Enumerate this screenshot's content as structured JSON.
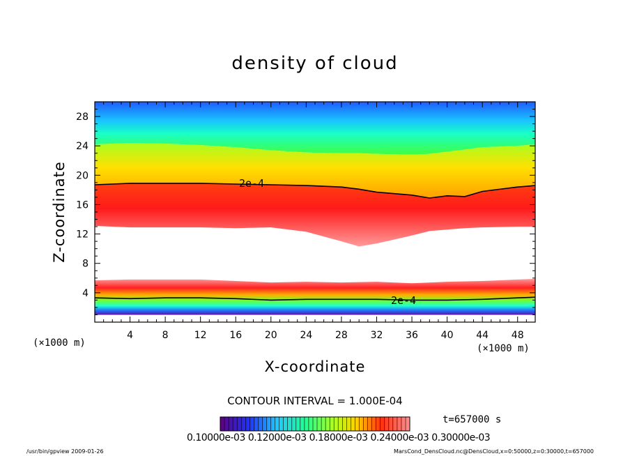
{
  "chart_data": {
    "type": "heatmap",
    "title": "density of cloud",
    "xlabel": "X-coordinate",
    "ylabel": "Z-coordinate",
    "x_unit_label": "(×1000 m)",
    "xlim": [
      0,
      50
    ],
    "ylim": [
      0,
      30
    ],
    "x_ticks": [
      "4",
      "8",
      "12",
      "16",
      "20",
      "24",
      "28",
      "32",
      "36",
      "40",
      "44",
      "48"
    ],
    "y_ticks": [
      "4",
      "8",
      "12",
      "16",
      "20",
      "24",
      "28"
    ],
    "contour_interval_text": "CONTOUR INTERVAL = 1.000E-04",
    "contour_labels": [
      "2e-4",
      "2e-4"
    ],
    "time_text": "t=657000 s",
    "colorbar_labels_text": "0.10000e-03 0.12000e-03 0.18000e-03 0.24000e-03 0.30000e-03",
    "upper_layer": {
      "x": [
        0,
        4,
        8,
        12,
        16,
        20,
        24,
        28,
        30,
        32,
        36,
        38,
        40,
        42,
        44,
        48,
        50
      ],
      "top": [
        24.2,
        24.4,
        24.3,
        24.1,
        23.8,
        23.4,
        23.1,
        23.0,
        23.0,
        22.9,
        22.8,
        22.9,
        23.2,
        23.5,
        23.8,
        24.0,
        24.2
      ],
      "contour_2e4": [
        18.7,
        18.9,
        18.9,
        18.9,
        18.8,
        18.7,
        18.6,
        18.4,
        18.1,
        17.7,
        17.3,
        16.9,
        17.2,
        17.1,
        17.8,
        18.4,
        18.6
      ],
      "peak": [
        15.5,
        15.4,
        15.3,
        15.3,
        15.4,
        15.3,
        15.0,
        14.0,
        12.5,
        12.3,
        13.2,
        14.0,
        14.8,
        15.2,
        15.4,
        15.5,
        15.5
      ],
      "bottom": [
        13.1,
        12.9,
        12.9,
        12.9,
        12.8,
        12.9,
        12.3,
        11.0,
        10.3,
        10.7,
        11.8,
        12.4,
        12.6,
        12.8,
        12.9,
        13.0,
        13.0
      ]
    },
    "lower_layer": {
      "x": [
        0,
        4,
        8,
        12,
        16,
        20,
        24,
        28,
        32,
        36,
        40,
        44,
        48,
        50
      ],
      "top": [
        5.7,
        5.8,
        5.8,
        5.8,
        5.6,
        5.4,
        5.5,
        5.4,
        5.5,
        5.3,
        5.5,
        5.6,
        5.8,
        5.9
      ],
      "contour_2e4": [
        3.3,
        3.2,
        3.3,
        3.3,
        3.2,
        3.0,
        3.1,
        3.1,
        3.1,
        3.0,
        3.0,
        3.1,
        3.3,
        3.4
      ],
      "bottom": [
        1.0,
        1.0,
        1.0,
        1.0,
        1.0,
        1.0,
        1.0,
        1.0,
        1.0,
        1.0,
        1.0,
        1.0,
        1.0,
        1.0
      ]
    }
  },
  "footer": {
    "left": "/usr/bin/gpview   2009-01-26",
    "right": "MarsCond_DensCloud.nc@DensCloud,x=0:50000,z=0:30000,t=657000"
  }
}
